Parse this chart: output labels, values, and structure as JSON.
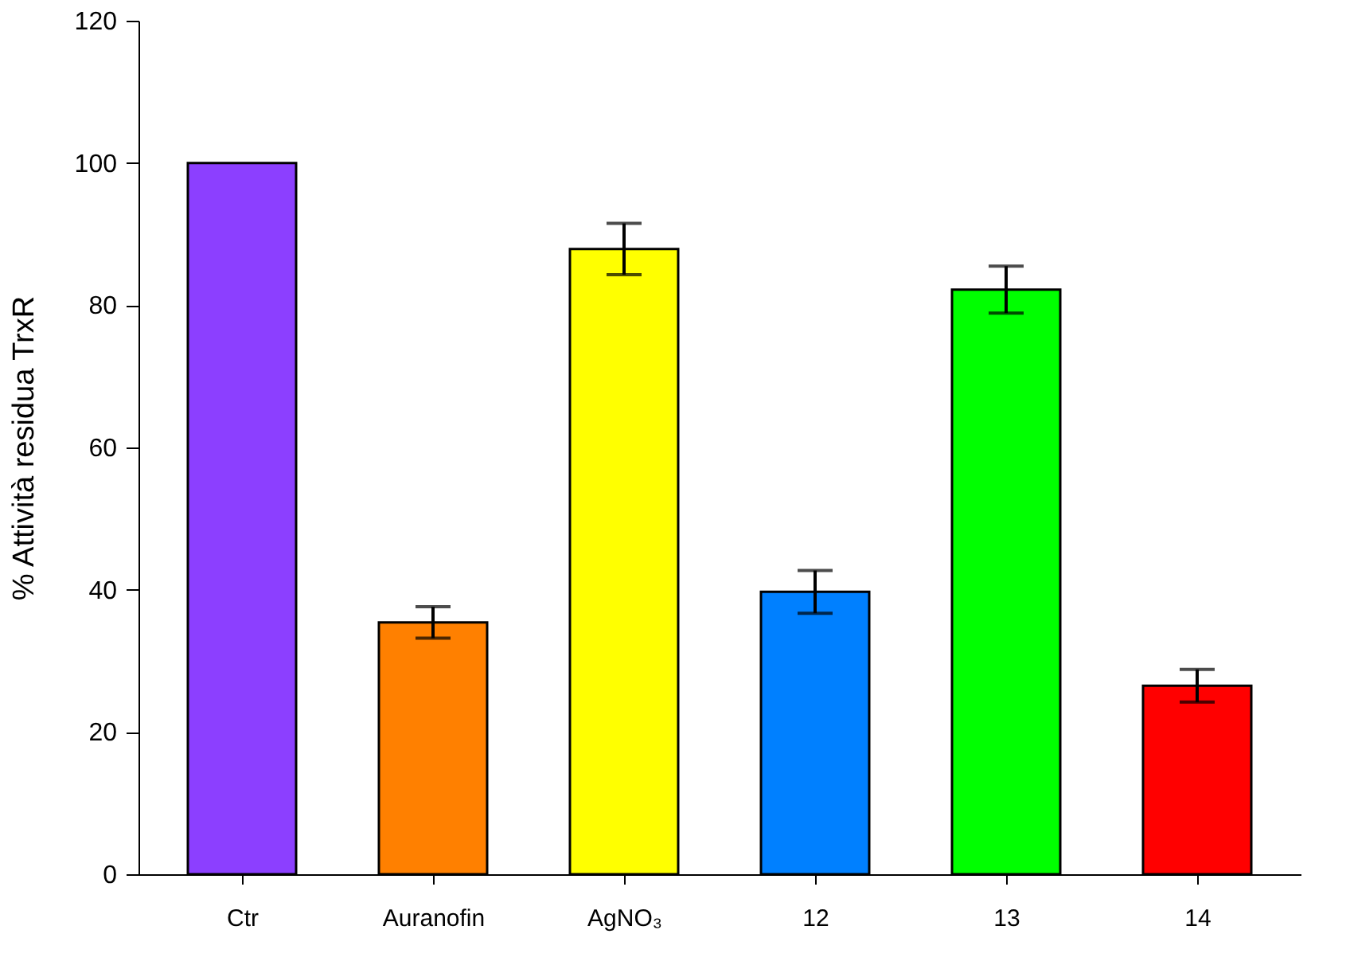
{
  "chart_data": {
    "type": "bar",
    "ylabel": "% Attività  residua TrxR",
    "categories": [
      "Ctr",
      "Auranofin",
      "AgNO₃",
      "12",
      "13",
      "14"
    ],
    "values": [
      100,
      35.4,
      87.9,
      39.7,
      82.2,
      26.5
    ],
    "errors": [
      null,
      2.2,
      3.6,
      3.0,
      3.3,
      2.3
    ],
    "colors": [
      "#8c3fff",
      "#ff8000",
      "#ffff00",
      "#0080ff",
      "#00ff00",
      "#ff0000"
    ],
    "ylim": [
      0,
      120
    ],
    "yticks": [
      0,
      20,
      40,
      60,
      80,
      100,
      120
    ],
    "grid": false
  }
}
